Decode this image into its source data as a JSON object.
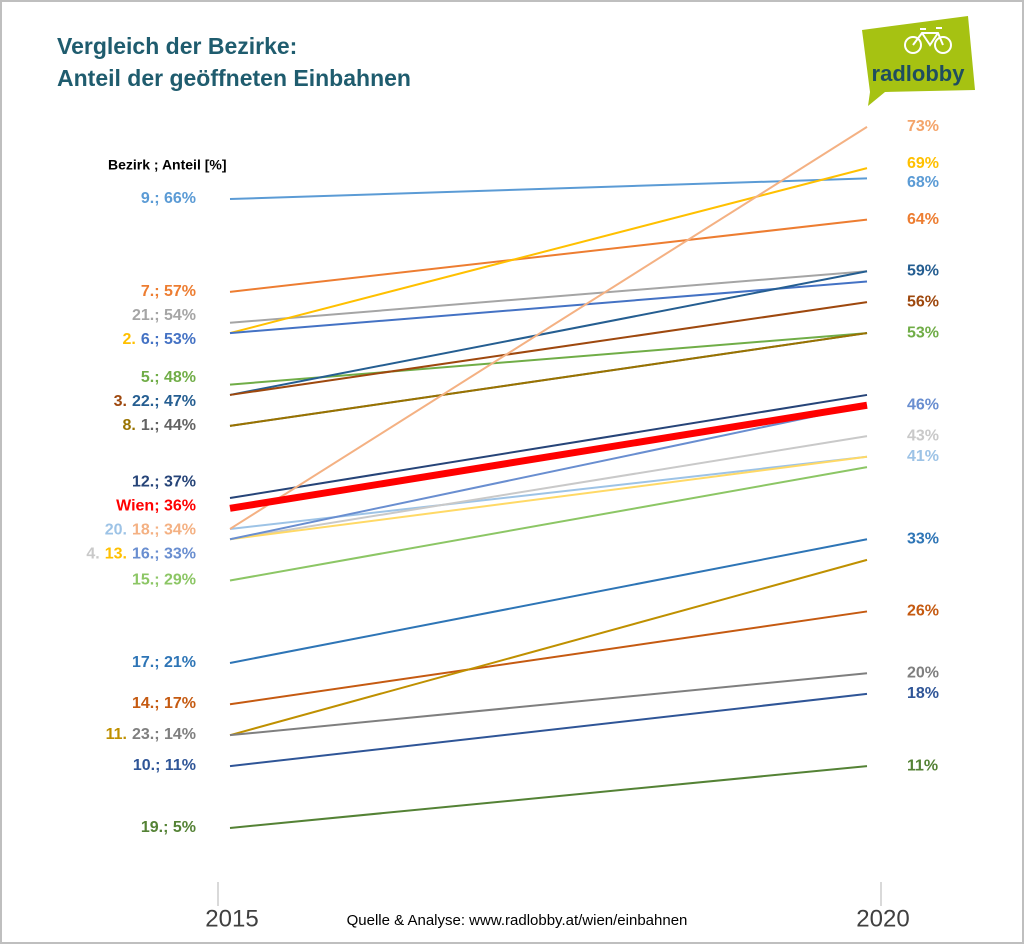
{
  "chart_data": {
    "type": "slope",
    "title": [
      "Vergleich der Bezirke:",
      "Anteil der geöffneten Einbahnen"
    ],
    "legend_header": "Bezirk ; Anteil [%]",
    "source": "Quelle & Analyse: www.radlobby.at/wien/einbahnen",
    "logo": "radlobby",
    "categories": [
      "2015",
      "2020"
    ],
    "series": [
      {
        "color": "#5b9bd5",
        "values": [
          66,
          68
        ]
      },
      {
        "color": "#ed7d31",
        "values": [
          57,
          64
        ]
      },
      {
        "color": "#a5a5a5",
        "values": [
          54,
          59
        ]
      },
      {
        "color": "#ffc000",
        "values": [
          53,
          69
        ]
      },
      {
        "color": "#4472c4",
        "values": [
          53,
          58
        ]
      },
      {
        "color": "#70ad47",
        "values": [
          48,
          53
        ]
      },
      {
        "color": "#255e91",
        "values": [
          47,
          59
        ]
      },
      {
        "color": "#9e480e",
        "values": [
          47,
          56
        ]
      },
      {
        "color": "#636363",
        "values": [
          44,
          53
        ]
      },
      {
        "color": "#997300",
        "values": [
          44,
          53
        ]
      },
      {
        "color": "#264478",
        "values": [
          37,
          47
        ]
      },
      {
        "color": "#ff0000",
        "values": [
          36,
          46
        ],
        "highlight": true
      },
      {
        "color": "#9dc3e6",
        "values": [
          34,
          41
        ]
      },
      {
        "color": "#f4b183",
        "values": [
          34,
          73
        ]
      },
      {
        "color": "#c9c9c9",
        "values": [
          33,
          43
        ]
      },
      {
        "color": "#ffd966",
        "values": [
          33,
          41
        ]
      },
      {
        "color": "#698ed0",
        "values": [
          33,
          46
        ]
      },
      {
        "color": "#8cc665",
        "values": [
          29,
          40
        ]
      },
      {
        "color": "#2e75b6",
        "values": [
          21,
          33
        ]
      },
      {
        "color": "#c55a11",
        "values": [
          17,
          26
        ]
      },
      {
        "color": "#bf9000",
        "values": [
          14,
          31
        ]
      },
      {
        "color": "#7f7f7f",
        "values": [
          14,
          20
        ]
      },
      {
        "color": "#2f5597",
        "values": [
          11,
          18
        ]
      },
      {
        "color": "#548235",
        "values": [
          5,
          11
        ]
      }
    ],
    "left_labels": [
      {
        "value": 66,
        "parts": [
          {
            "text": "9.; 66%",
            "color": "#5b9bd5"
          }
        ]
      },
      {
        "value": 57,
        "parts": [
          {
            "text": "7.; 57%",
            "color": "#ed7d31"
          }
        ]
      },
      {
        "value": 54,
        "parts": [
          {
            "text": "21.; 54%",
            "color": "#a5a5a5"
          }
        ]
      },
      {
        "value": 53,
        "parts": [
          {
            "text": "2.",
            "color": "#ffc000"
          },
          {
            "text": "6.; 53%",
            "color": "#4472c4"
          }
        ]
      },
      {
        "value": 48,
        "parts": [
          {
            "text": "5.; 48%",
            "color": "#70ad47"
          }
        ]
      },
      {
        "value": 47,
        "parts": [
          {
            "text": "3.",
            "color": "#9e480e"
          },
          {
            "text": "22.; 47%",
            "color": "#255e91"
          }
        ]
      },
      {
        "value": 44,
        "parts": [
          {
            "text": "8.",
            "color": "#997300"
          },
          {
            "text": "1.; 44%",
            "color": "#636363"
          }
        ]
      },
      {
        "value": 37,
        "parts": [
          {
            "text": "12.; 37%",
            "color": "#264478"
          }
        ]
      },
      {
        "value": 36,
        "parts": [
          {
            "text": "Wien; 36%",
            "color": "#ff0000"
          }
        ],
        "highlight": true
      },
      {
        "value": 34,
        "parts": [
          {
            "text": "20.",
            "color": "#9dc3e6"
          },
          {
            "text": "18.; 34%",
            "color": "#f4b183"
          }
        ]
      },
      {
        "value": 33,
        "parts": [
          {
            "text": "4.",
            "color": "#c9c9c9"
          },
          {
            "text": "13.",
            "color": "#ffc000"
          },
          {
            "text": "16.; 33%",
            "color": "#698ed0"
          }
        ]
      },
      {
        "value": 29,
        "parts": [
          {
            "text": "15.; 29%",
            "color": "#8cc665"
          }
        ]
      },
      {
        "value": 21,
        "parts": [
          {
            "text": "17.; 21%",
            "color": "#2e75b6"
          }
        ]
      },
      {
        "value": 17,
        "parts": [
          {
            "text": "14.; 17%",
            "color": "#c55a11"
          }
        ]
      },
      {
        "value": 14,
        "parts": [
          {
            "text": "11.",
            "color": "#bf9000"
          },
          {
            "text": "23.; 14%",
            "color": "#7f7f7f"
          }
        ]
      },
      {
        "value": 11,
        "parts": [
          {
            "text": "10.; 11%",
            "color": "#2f5597"
          }
        ]
      },
      {
        "value": 5,
        "parts": [
          {
            "text": "19.; 5%",
            "color": "#548235"
          }
        ]
      }
    ],
    "right_labels": [
      {
        "value": 73,
        "text": "73%",
        "color": "#f4a46a"
      },
      {
        "value": 69,
        "text": "69%",
        "color": "#ffc000"
      },
      {
        "value": 68,
        "text": "68%",
        "color": "#5b9bd5"
      },
      {
        "value": 64,
        "text": "64%",
        "color": "#ed7d31"
      },
      {
        "value": 59,
        "text": "59%",
        "color": "#255e91"
      },
      {
        "value": 56,
        "text": "56%",
        "color": "#9e480e"
      },
      {
        "value": 53,
        "text": "53%",
        "color": "#70ad47"
      },
      {
        "value": 46,
        "text": "46%",
        "color": "#698ed0"
      },
      {
        "value": 43,
        "text": "43%",
        "color": "#c9c9c9"
      },
      {
        "value": 41,
        "text": "41%",
        "color": "#9dc3e6"
      },
      {
        "value": 33,
        "text": "33%",
        "color": "#2e75b6"
      },
      {
        "value": 26,
        "text": "26%",
        "color": "#c55a11"
      },
      {
        "value": 20,
        "text": "20%",
        "color": "#7f7f7f"
      },
      {
        "value": 18,
        "text": "18%",
        "color": "#2f5597"
      },
      {
        "value": 11,
        "text": "11%",
        "color": "#548235"
      }
    ]
  }
}
